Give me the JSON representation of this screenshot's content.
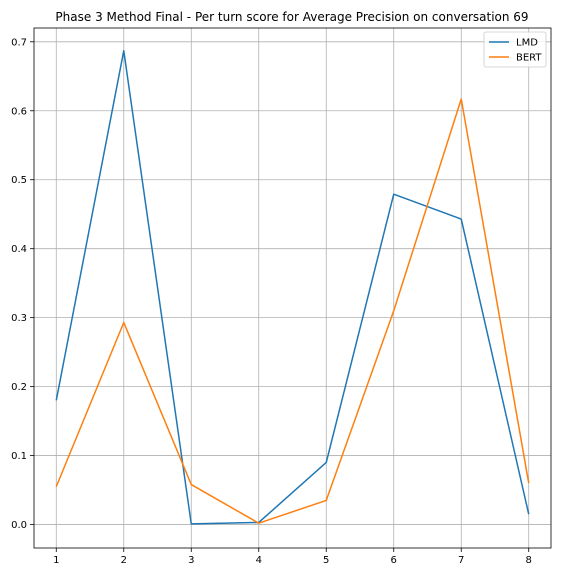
{
  "chart_data": {
    "type": "line",
    "title": "Phase 3 Method Final - Per turn score for Average Precision on conversation 69",
    "xlabel": "",
    "ylabel": "",
    "x": [
      1,
      2,
      3,
      4,
      5,
      6,
      7,
      8
    ],
    "xticks": [
      "1",
      "2",
      "3",
      "4",
      "5",
      "6",
      "7",
      "8"
    ],
    "yticks": [
      "0.0",
      "0.1",
      "0.2",
      "0.3",
      "0.4",
      "0.5",
      "0.6",
      "0.7"
    ],
    "xlim": [
      0.67,
      8.33
    ],
    "ylim": [
      -0.034,
      0.72
    ],
    "grid": true,
    "legend_position": "top-right",
    "series": [
      {
        "name": "LMD",
        "color": "#1f77b4",
        "values": [
          0.18,
          0.687,
          0.001,
          0.003,
          0.09,
          0.479,
          0.443,
          0.015
        ]
      },
      {
        "name": "BERT",
        "color": "#ff7f0e",
        "values": [
          0.055,
          0.293,
          0.058,
          0.002,
          0.035,
          0.31,
          0.617,
          0.06
        ]
      }
    ]
  }
}
